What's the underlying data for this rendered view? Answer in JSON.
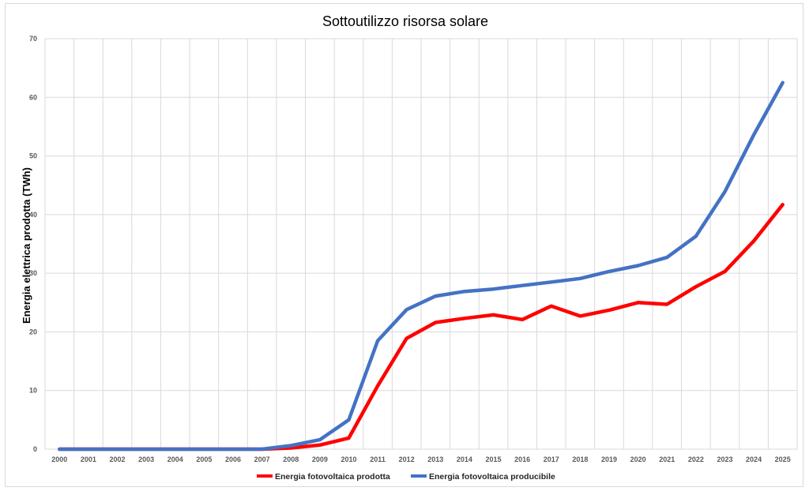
{
  "chart_data": {
    "type": "line",
    "title": "Sottoutilizzo risorsa solare",
    "xlabel": "",
    "ylabel": "Energia elettrica prodotta (TWh)",
    "ylim": [
      0,
      70
    ],
    "y_ticks": [
      "0",
      "10",
      "20",
      "30",
      "40",
      "50",
      "60",
      "70"
    ],
    "grid": true,
    "legend_position": "bottom",
    "categories": [
      "2000",
      "2001",
      "2002",
      "2003",
      "2004",
      "2005",
      "2006",
      "2007",
      "2008",
      "2009",
      "2010",
      "2011",
      "2012",
      "2013",
      "2014",
      "2015",
      "2016",
      "2017",
      "2018",
      "2019",
      "2020",
      "2021",
      "2022",
      "2023",
      "2024",
      "2025"
    ],
    "series": [
      {
        "name": "Energia fotovoltaica prodotta",
        "color": "#ff0000",
        "values": [
          0,
          0,
          0,
          0,
          0,
          0,
          0,
          0,
          0.2,
          0.7,
          1.9,
          10.8,
          18.9,
          21.6,
          22.3,
          22.9,
          22.1,
          24.4,
          22.7,
          23.7,
          25.0,
          24.7,
          27.7,
          30.3,
          35.5,
          41.7
        ]
      },
      {
        "name": "Energia fotovoltaica producibile",
        "color": "#4472c4",
        "values": [
          0,
          0,
          0,
          0,
          0,
          0,
          0,
          0,
          0.6,
          1.6,
          5.0,
          18.5,
          23.8,
          26.1,
          26.9,
          27.3,
          27.9,
          28.5,
          29.1,
          30.3,
          31.3,
          32.7,
          36.3,
          43.9,
          53.6,
          62.5
        ]
      }
    ]
  }
}
